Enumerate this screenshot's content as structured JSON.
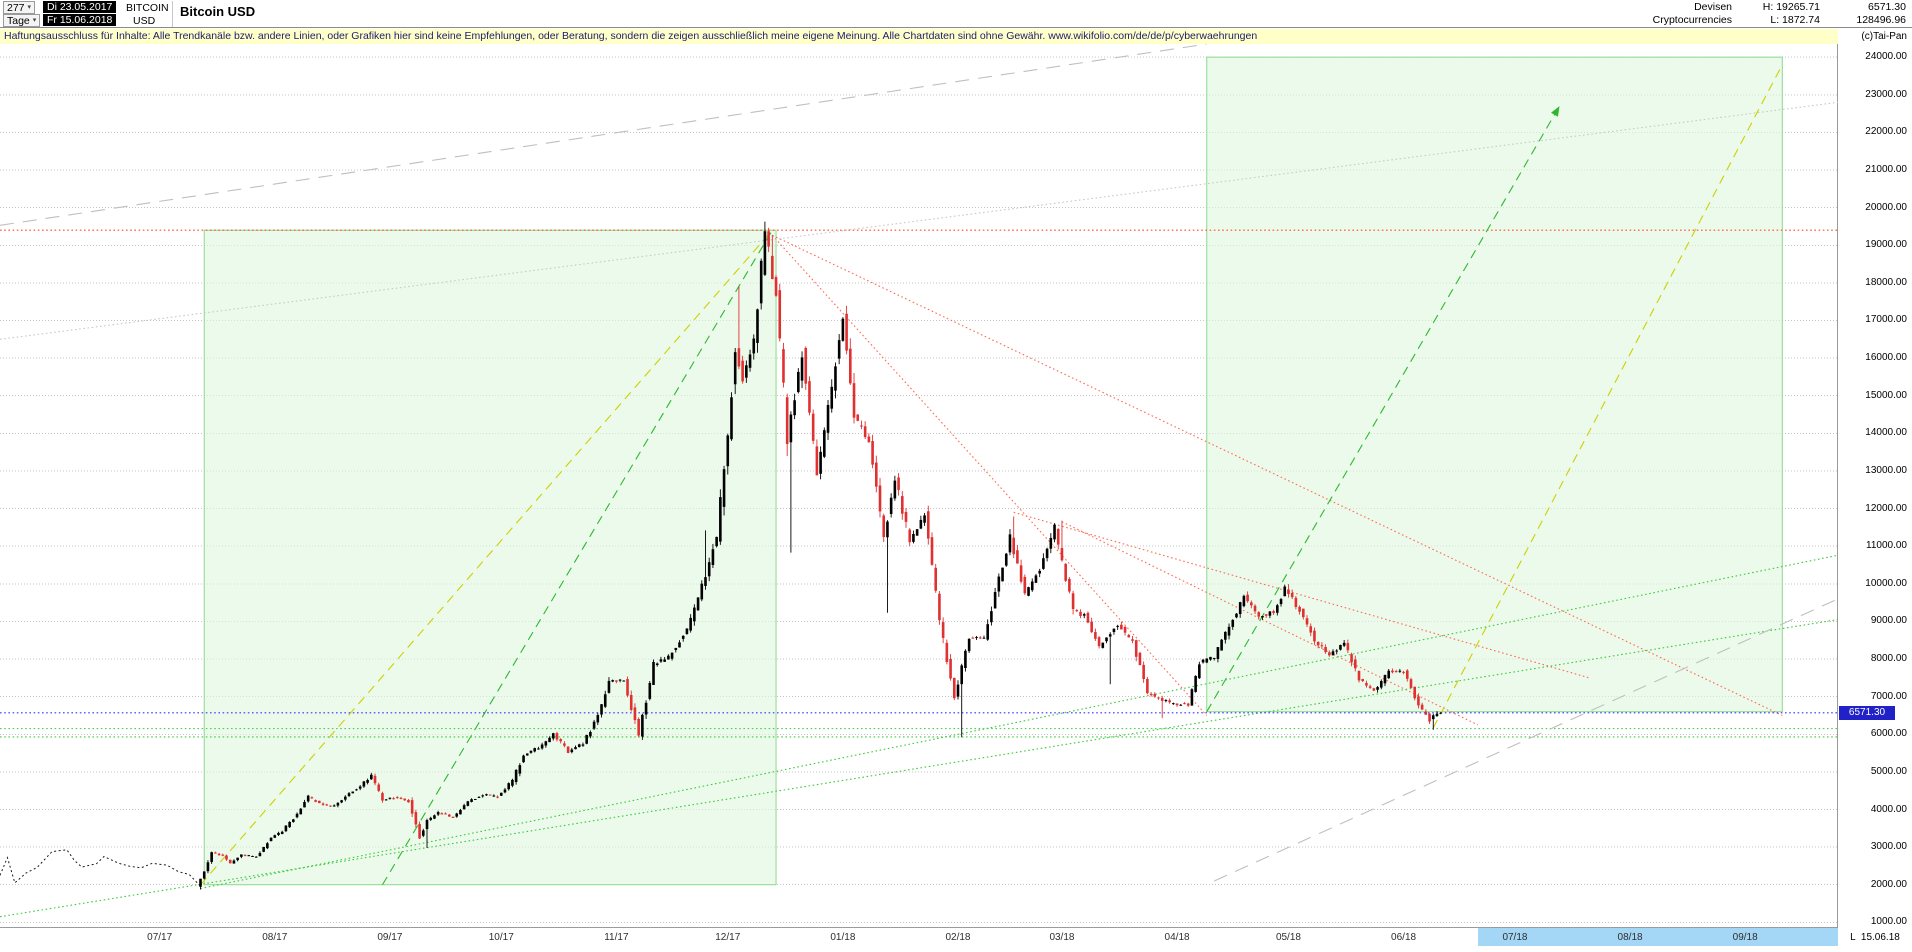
{
  "header": {
    "bars_count": "277",
    "period": "Tage",
    "date_from": "Di 23.05.2017",
    "date_to": "Fr 15.06.2018",
    "symbol_line1": "BITCOIN",
    "symbol_line2": "USD",
    "title": "Bitcoin USD",
    "category_line1": "Devisen",
    "category_line2": "Cryptocurrencies",
    "high_label": "H: 19265.71",
    "low_label": "L: 1872.74",
    "last_price": "6571.30",
    "volume": "128496.96",
    "copyright": "(c)Tai-Pan"
  },
  "disclaimer": "Haftungsausschluss für Inhalte: Alle Trendkanäle bzw. andere Linien, oder Grafiken hier sind keine Empfehlungen, oder Beratung, sondern die zeigen ausschließlich meine eigene Meinung. Alle Chartdaten sind ohne Gewähr.  www.wikifolio.com/de/de/p/cyberwaehrungen",
  "axis": {
    "epoch": "2017-05-23",
    "day_range": [
      0,
      495
    ],
    "price_range": [
      850,
      24350
    ],
    "price_min_label": 1000,
    "price_max_label": 24000,
    "price_step": 1000,
    "months": [
      {
        "label": "07/17",
        "date": "2017-07-01"
      },
      {
        "label": "08/17",
        "date": "2017-08-01"
      },
      {
        "label": "09/17",
        "date": "2017-09-01"
      },
      {
        "label": "10/17",
        "date": "2017-10-01"
      },
      {
        "label": "11/17",
        "date": "2017-11-01"
      },
      {
        "label": "12/17",
        "date": "2017-12-01"
      },
      {
        "label": "01/18",
        "date": "2018-01-01"
      },
      {
        "label": "02/18",
        "date": "2018-02-01"
      },
      {
        "label": "03/18",
        "date": "2018-03-01"
      },
      {
        "label": "04/18",
        "date": "2018-04-01"
      },
      {
        "label": "05/18",
        "date": "2018-05-01"
      },
      {
        "label": "06/18",
        "date": "2018-06-01"
      },
      {
        "label": "07/18",
        "date": "2018-07-01"
      },
      {
        "label": "08/18",
        "date": "2018-08-01"
      },
      {
        "label": "09/18",
        "date": "2018-09-01"
      }
    ],
    "future_from": "2018-06-25",
    "last_date_label": "L  15.06.18",
    "price_marker": {
      "value": 6571.3,
      "label": "6571.30"
    }
  },
  "chart_data": {
    "type": "candlestick",
    "title": "Bitcoin USD",
    "ylabel": "USD",
    "ylim": [
      850,
      24350
    ],
    "grid": true,
    "high": 19265.71,
    "low": 1872.74,
    "last_close": 6571.3,
    "candles_start": "2017-07-16",
    "candles_end": "2018-06-15",
    "colors": {
      "up": "#000000",
      "down": "#e03030"
    },
    "path": [
      [
        "2017-05-23",
        2250
      ],
      [
        "2017-05-25",
        2720
      ],
      [
        "2017-05-27",
        2050
      ],
      [
        "2017-05-30",
        2310
      ],
      [
        "2017-06-02",
        2460
      ],
      [
        "2017-06-06",
        2880
      ],
      [
        "2017-06-10",
        2930
      ],
      [
        "2017-06-12",
        2650
      ],
      [
        "2017-06-14",
        2470
      ],
      [
        "2017-06-18",
        2560
      ],
      [
        "2017-06-20",
        2750
      ],
      [
        "2017-06-24",
        2570
      ],
      [
        "2017-06-27",
        2490
      ],
      [
        "2017-06-30",
        2450
      ],
      [
        "2017-07-03",
        2570
      ],
      [
        "2017-07-07",
        2520
      ],
      [
        "2017-07-10",
        2350
      ],
      [
        "2017-07-13",
        2270
      ],
      [
        "2017-07-16",
        1960
      ],
      [
        "2017-07-18",
        2330
      ],
      [
        "2017-07-20",
        2860
      ],
      [
        "2017-07-23",
        2760
      ],
      [
        "2017-07-25",
        2560
      ],
      [
        "2017-07-28",
        2810
      ],
      [
        "2017-08-01",
        2740
      ],
      [
        "2017-08-05",
        3260
      ],
      [
        "2017-08-08",
        3430
      ],
      [
        "2017-08-12",
        3880
      ],
      [
        "2017-08-15",
        4330
      ],
      [
        "2017-08-18",
        4160
      ],
      [
        "2017-08-22",
        4090
      ],
      [
        "2017-08-25",
        4360
      ],
      [
        "2017-08-29",
        4610
      ],
      [
        "2017-09-01",
        4920
      ],
      [
        "2017-09-04",
        4260
      ],
      [
        "2017-09-08",
        4330
      ],
      [
        "2017-09-11",
        4210
      ],
      [
        "2017-09-14",
        3260
      ],
      [
        "2017-09-16",
        3710
      ],
      [
        "2017-09-19",
        3910
      ],
      [
        "2017-09-23",
        3800
      ],
      [
        "2017-09-27",
        4210
      ],
      [
        "2017-10-01",
        4400
      ],
      [
        "2017-10-05",
        4330
      ],
      [
        "2017-10-09",
        4780
      ],
      [
        "2017-10-12",
        5450
      ],
      [
        "2017-10-16",
        5650
      ],
      [
        "2017-10-20",
        6010
      ],
      [
        "2017-10-24",
        5540
      ],
      [
        "2017-10-28",
        5760
      ],
      [
        "2017-11-01",
        6460
      ],
      [
        "2017-11-04",
        7390
      ],
      [
        "2017-11-08",
        7460
      ],
      [
        "2017-11-12",
        5960
      ],
      [
        "2017-11-16",
        7880
      ],
      [
        "2017-11-20",
        8050
      ],
      [
        "2017-11-25",
        8770
      ],
      [
        "2017-11-29",
        9920
      ],
      [
        "2017-12-03",
        11260
      ],
      [
        "2017-12-06",
        14010
      ],
      [
        "2017-12-08",
        16210
      ],
      [
        "2017-12-10",
        15410
      ],
      [
        "2017-12-13",
        16560
      ],
      [
        "2017-12-16",
        19340
      ],
      [
        "2017-12-19",
        17720
      ],
      [
        "2017-12-22",
        13850
      ],
      [
        "2017-12-26",
        16110
      ],
      [
        "2017-12-30",
        12920
      ],
      [
        "2018-01-03",
        15210
      ],
      [
        "2018-01-06",
        17110
      ],
      [
        "2018-01-09",
        14410
      ],
      [
        "2018-01-13",
        13820
      ],
      [
        "2018-01-17",
        11210
      ],
      [
        "2018-01-20",
        12810
      ],
      [
        "2018-01-24",
        11120
      ],
      [
        "2018-01-28",
        11820
      ],
      [
        "2018-02-01",
        9060
      ],
      [
        "2018-02-05",
        6960
      ],
      [
        "2018-02-09",
        8560
      ],
      [
        "2018-02-13",
        8560
      ],
      [
        "2018-02-17",
        10120
      ],
      [
        "2018-02-20",
        11260
      ],
      [
        "2018-02-24",
        9710
      ],
      [
        "2018-02-28",
        10410
      ],
      [
        "2018-03-04",
        11510
      ],
      [
        "2018-03-09",
        9260
      ],
      [
        "2018-03-12",
        9160
      ],
      [
        "2018-03-16",
        8310
      ],
      [
        "2018-03-21",
        8940
      ],
      [
        "2018-03-25",
        8460
      ],
      [
        "2018-03-29",
        7110
      ],
      [
        "2018-04-01",
        6940
      ],
      [
        "2018-04-05",
        6810
      ],
      [
        "2018-04-09",
        6780
      ],
      [
        "2018-04-12",
        7910
      ],
      [
        "2018-04-16",
        8060
      ],
      [
        "2018-04-20",
        8860
      ],
      [
        "2018-04-24",
        9660
      ],
      [
        "2018-04-28",
        9110
      ],
      [
        "2018-05-02",
        9260
      ],
      [
        "2018-05-05",
        9860
      ],
      [
        "2018-05-09",
        9310
      ],
      [
        "2018-05-13",
        8510
      ],
      [
        "2018-05-17",
        8110
      ],
      [
        "2018-05-21",
        8410
      ],
      [
        "2018-05-25",
        7460
      ],
      [
        "2018-05-29",
        7140
      ],
      [
        "2018-06-02",
        7660
      ],
      [
        "2018-06-06",
        7660
      ],
      [
        "2018-06-10",
        6790
      ],
      [
        "2018-06-13",
        6360
      ],
      [
        "2018-06-15",
        6571.3
      ]
    ],
    "extremes": [
      {
        "date": "2017-07-16",
        "low": 1872.74
      },
      {
        "date": "2017-09-15",
        "low": 2980
      },
      {
        "date": "2017-11-12",
        "low": 5850
      },
      {
        "date": "2017-11-29",
        "high": 11420
      },
      {
        "date": "2017-12-08",
        "high": 17900
      },
      {
        "date": "2017-12-17",
        "high": 19265.71
      },
      {
        "date": "2017-12-22",
        "low": 10830
      },
      {
        "date": "2018-01-06",
        "high": 17170
      },
      {
        "date": "2018-01-17",
        "low": 9230
      },
      {
        "date": "2018-02-06",
        "low": 5920
      },
      {
        "date": "2018-02-20",
        "high": 11790
      },
      {
        "date": "2018-03-05",
        "high": 11680
      },
      {
        "date": "2018-03-18",
        "low": 7330
      },
      {
        "date": "2018-04-01",
        "low": 6430
      },
      {
        "date": "2018-05-05",
        "high": 9990
      },
      {
        "date": "2018-06-13",
        "low": 6120
      }
    ],
    "overlays": {
      "boxes": [
        {
          "x1": "2017-07-17",
          "x2": "2017-12-18",
          "y1": 2000,
          "y2": 19400,
          "fill": "#dff6df",
          "opacity": 0.6,
          "stroke": "#8ada8a"
        },
        {
          "x1": "2018-04-13",
          "x2": "2018-09-15",
          "y1": 6600,
          "y2": 24000,
          "fill": "#dff6df",
          "opacity": 0.6,
          "stroke": "#8ada8a"
        }
      ],
      "lines": [
        {
          "x1": "2017-05-23",
          "y1": 19400,
          "x2": "2018-09-30",
          "y2": 19400,
          "color": "#ff4a2a",
          "dash": "dot"
        },
        {
          "x1": "2017-12-17",
          "y1": 19265,
          "x2": "2018-09-15",
          "y2": 6500,
          "color": "#ff6a50",
          "dash": "dot"
        },
        {
          "x1": "2017-12-17",
          "y1": 19265,
          "x2": "2018-04-13",
          "y2": 6500,
          "color": "#ff6a50",
          "dash": "dot"
        },
        {
          "x1": "2018-02-20",
          "y1": 11900,
          "x2": "2018-07-25",
          "y2": 7500,
          "color": "#ff6a50",
          "dash": "dot"
        },
        {
          "x1": "2018-03-05",
          "y1": 11650,
          "x2": "2018-06-25",
          "y2": 6250,
          "color": "#ff6a50",
          "dash": "dot"
        },
        {
          "x1": "2017-09-03",
          "y1": 2000,
          "x2": "2017-12-17",
          "y2": 19400,
          "color": "#2eb82e",
          "dash": "dash"
        },
        {
          "x1": "2018-04-13",
          "y1": 6600,
          "x2": "2018-07-17",
          "y2": 22700,
          "color": "#2eb82e",
          "dash": "dash",
          "arrow": true
        },
        {
          "x1": "2017-07-16",
          "y1": 2000,
          "x2": "2017-12-17",
          "y2": 19400,
          "color": "#cfcf00",
          "dash": "dash"
        },
        {
          "x1": "2018-06-13",
          "y1": 6170,
          "x2": "2018-09-15",
          "y2": 23800,
          "color": "#cfcf00",
          "dash": "dash"
        },
        {
          "x1": "2017-05-23",
          "y1": 1150,
          "x2": "2018-09-30",
          "y2": 9050,
          "color": "#3dc93d",
          "dash": "dot"
        },
        {
          "x1": "2017-07-16",
          "y1": 1900,
          "x2": "2018-09-30",
          "y2": 10760,
          "color": "#3dc93d",
          "dash": "dot"
        },
        {
          "x1": "2017-05-23",
          "y1": 6150,
          "x2": "2018-09-30",
          "y2": 6150,
          "color": "#3dc93d",
          "dash": "dot"
        },
        {
          "x1": "2017-05-23",
          "y1": 5930,
          "x2": "2018-09-30",
          "y2": 5930,
          "color": "#3dc93d",
          "dash": "dot"
        },
        {
          "x1": "2017-05-23",
          "y1": 19530,
          "x2": "2018-04-13",
          "y2": 24350,
          "color": "#bfbfbf",
          "dash": "long"
        },
        {
          "x1": "2018-04-15",
          "y1": 2100,
          "x2": "2018-09-30",
          "y2": 9600,
          "color": "#bfbfbf",
          "dash": "long"
        },
        {
          "x1": "2017-05-23",
          "y1": 16500,
          "x2": "2018-09-30",
          "y2": 22800,
          "color": "#c8c8c8",
          "dash": "dot"
        },
        {
          "x1": "2017-05-23",
          "y1": 6571.3,
          "x2": "2018-09-30",
          "y2": 6571.3,
          "color": "#3535ff",
          "dash": "dot"
        }
      ]
    }
  }
}
